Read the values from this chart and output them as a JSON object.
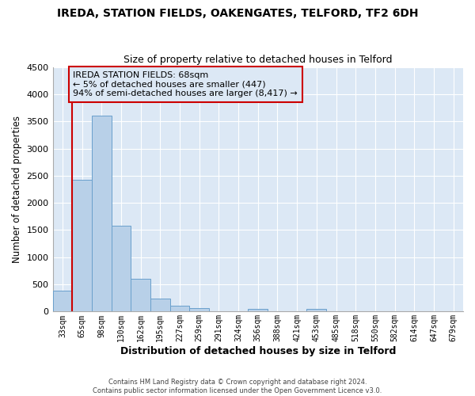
{
  "title": "IREDA, STATION FIELDS, OAKENGATES, TELFORD, TF2 6DH",
  "subtitle": "Size of property relative to detached houses in Telford",
  "xlabel": "Distribution of detached houses by size in Telford",
  "ylabel": "Number of detached properties",
  "bin_labels": [
    "33sqm",
    "65sqm",
    "98sqm",
    "130sqm",
    "162sqm",
    "195sqm",
    "227sqm",
    "259sqm",
    "291sqm",
    "324sqm",
    "356sqm",
    "388sqm",
    "421sqm",
    "453sqm",
    "485sqm",
    "518sqm",
    "550sqm",
    "582sqm",
    "614sqm",
    "647sqm",
    "679sqm"
  ],
  "bar_values": [
    380,
    2430,
    3610,
    1580,
    600,
    240,
    105,
    60,
    0,
    0,
    55,
    0,
    0,
    55,
    0,
    0,
    0,
    0,
    0,
    0,
    0
  ],
  "bar_color": "#b8d0e8",
  "bar_edge_color": "#6aa0cc",
  "ylim": [
    0,
    4500
  ],
  "yticks": [
    0,
    500,
    1000,
    1500,
    2000,
    2500,
    3000,
    3500,
    4000,
    4500
  ],
  "vline_x": 1.0,
  "vline_color": "#cc0000",
  "annotation_box_text": "IREDA STATION FIELDS: 68sqm\n← 5% of detached houses are smaller (447)\n94% of semi-detached houses are larger (8,417) →",
  "annotation_box_color": "#cc0000",
  "footer_text": "Contains HM Land Registry data © Crown copyright and database right 2024.\nContains public sector information licensed under the Open Government Licence v3.0.",
  "plot_bg_color": "#dce8f5",
  "fig_bg_color": "#ffffff",
  "grid_color": "#ffffff",
  "title_fontsize": 10,
  "subtitle_fontsize": 9
}
